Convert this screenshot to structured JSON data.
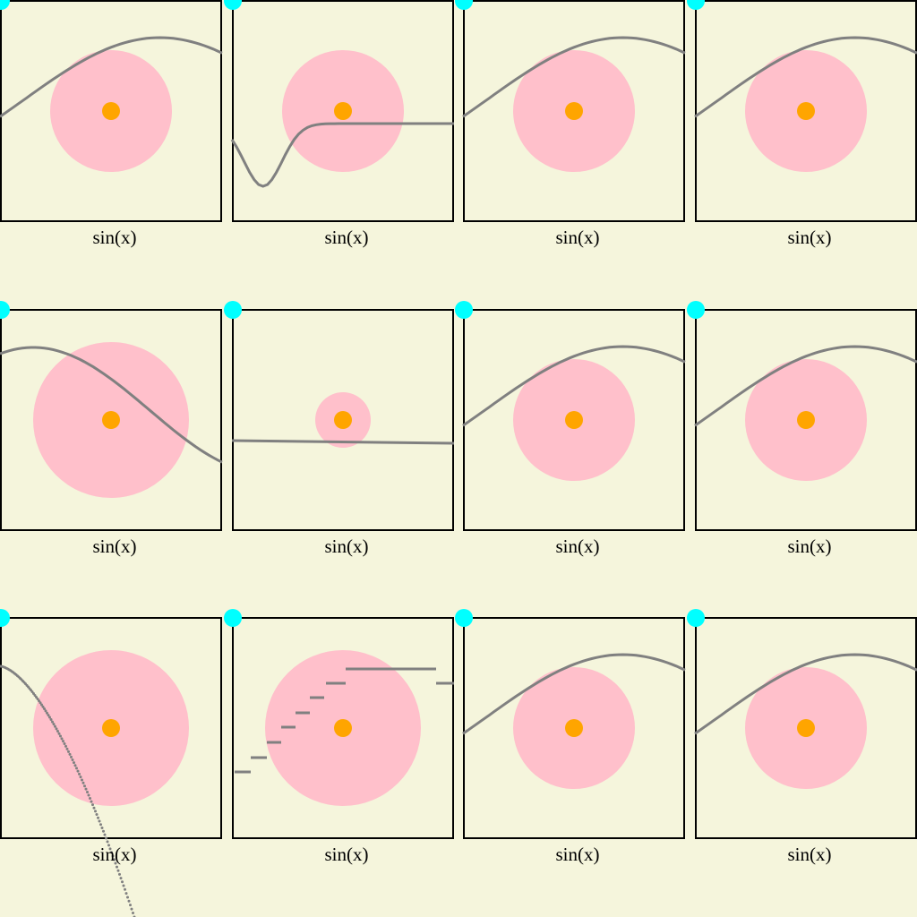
{
  "colors": {
    "background": "#f5f5dc",
    "frame": "#000000",
    "curve": "#808080",
    "disc": "#ffc0cb",
    "center_dot": "#ffa500",
    "corner_dot": "#00ffff"
  },
  "icons": {
    "corner_marker": "cyan-circle",
    "center_marker": "orange-circle"
  },
  "chart_data": [
    {
      "type": "line",
      "label": "sin(x)",
      "curve": "sine-wave",
      "disc_radius": "medium"
    },
    {
      "type": "line",
      "label": "sin(x)",
      "curve": "dip-then-rise",
      "disc_radius": "medium"
    },
    {
      "type": "line",
      "label": "sin(x)",
      "curve": "sine-wave",
      "disc_radius": "medium"
    },
    {
      "type": "line",
      "label": "sin(x)",
      "curve": "sine-wave",
      "disc_radius": "medium"
    },
    {
      "type": "line",
      "label": "sin(x)",
      "curve": "falling-wave",
      "disc_radius": "large"
    },
    {
      "type": "line",
      "label": "sin(x)",
      "curve": "flat",
      "disc_radius": "small"
    },
    {
      "type": "line",
      "label": "sin(x)",
      "curve": "sine-wave",
      "disc_radius": "medium"
    },
    {
      "type": "line",
      "label": "sin(x)",
      "curve": "sine-wave",
      "disc_radius": "medium"
    },
    {
      "type": "scatter",
      "label": "sin(x)",
      "curve": "dotted-descent",
      "disc_radius": "large"
    },
    {
      "type": "line",
      "label": "sin(x)",
      "curve": "step",
      "disc_radius": "large"
    },
    {
      "type": "line",
      "label": "sin(x)",
      "curve": "sine-wave",
      "disc_radius": "medium"
    },
    {
      "type": "line",
      "label": "sin(x)",
      "curve": "sine-wave",
      "disc_radius": "medium"
    }
  ]
}
